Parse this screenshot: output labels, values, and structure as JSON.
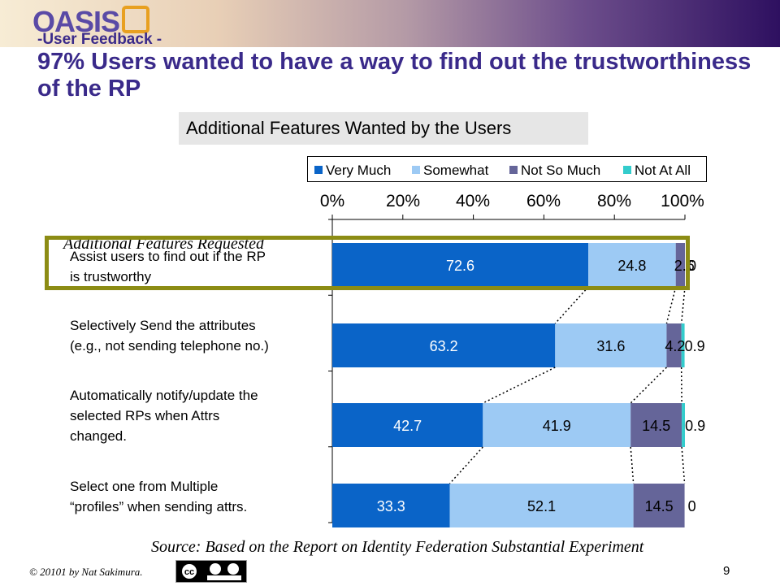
{
  "header": {
    "logo_text": "OASIS",
    "kicker": "-User Feedback -",
    "title": "97% Users wanted to have a way to find out the trustworthiness of the RP"
  },
  "chart_data": {
    "type": "bar",
    "orientation": "horizontal",
    "stacked": true,
    "title": "Additional Features Wanted by the Users",
    "axis_label": "Additional Features Requested",
    "categories": [
      "Assist users to find out if the RP\nis trustworthy",
      "Selectively Send the attributes\n(e.g., not sending telephone no.)",
      "Automatically notify/update the\nselected RPs when Attrs\nchanged.",
      "Select one from Multiple\n“profiles” when sending attrs."
    ],
    "series": [
      {
        "name": "Very Much",
        "color": "#0a64c8",
        "values": [
          72.6,
          63.2,
          42.7,
          33.3
        ],
        "labels": [
          "72.6",
          "63.2",
          "42.7",
          "33.3"
        ]
      },
      {
        "name": "Somewhat",
        "color": "#9dcaf4",
        "values": [
          24.8,
          31.6,
          41.9,
          52.1
        ],
        "labels": [
          "24.8",
          "31.6",
          "41.9",
          "52.1"
        ]
      },
      {
        "name": "Not So Much",
        "color": "#656599",
        "values": [
          2.6,
          4.2,
          14.5,
          14.5
        ],
        "labels": [
          "2.6",
          "4.2",
          "14.5",
          "14.5"
        ]
      },
      {
        "name": "Not At All",
        "color": "#33cccc",
        "values": [
          0,
          0.9,
          0.9,
          0
        ],
        "labels": [
          "0",
          "0.9",
          "0.9",
          "0"
        ]
      }
    ],
    "xlim": [
      0,
      100
    ],
    "tick_labels": [
      "0%",
      "20%",
      "40%",
      "60%",
      "80%",
      "100%"
    ],
    "legend_position": "top"
  },
  "source": "Source: Based on the Report on Identity Federation Substantial Experiment",
  "footer": {
    "copyright": "© 20101 by Nat Sakimura.",
    "license_icon": "cc-by-sa-icon",
    "page_number": "9"
  }
}
